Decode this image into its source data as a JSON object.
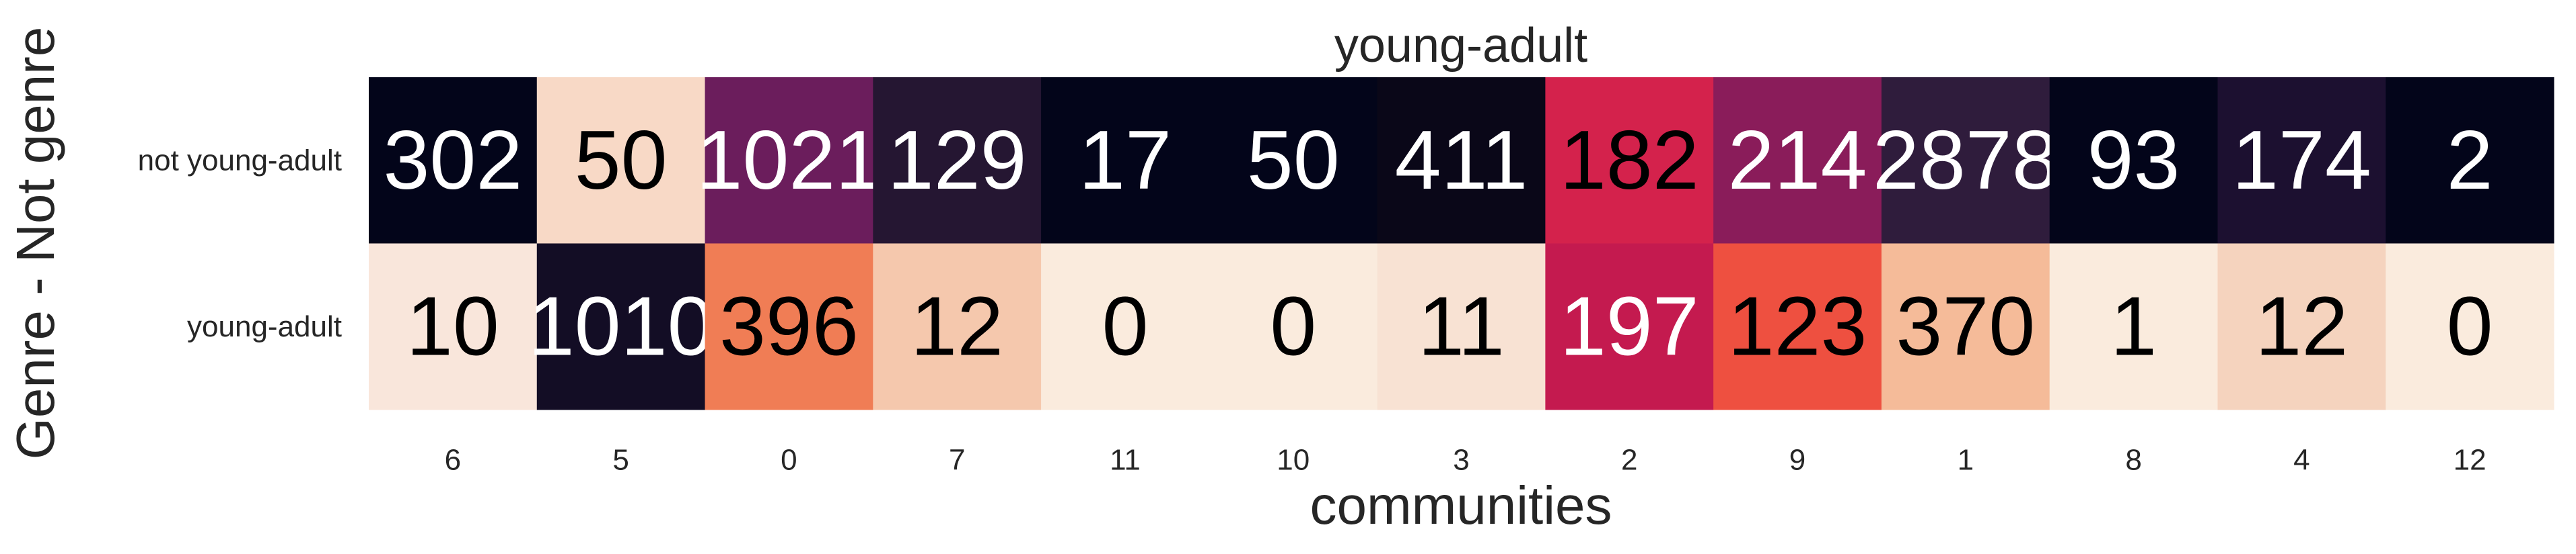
{
  "chart_data": {
    "type": "heatmap",
    "title": "young-adult",
    "xlabel": "communities",
    "ylabel": "Genre - Not genre",
    "x_categories": [
      "6",
      "5",
      "0",
      "7",
      "11",
      "10",
      "3",
      "2",
      "9",
      "1",
      "8",
      "4",
      "12"
    ],
    "y_categories": [
      "not young-adult",
      "young-adult"
    ],
    "values": [
      [
        302,
        50,
        1021,
        129,
        17,
        50,
        411,
        182,
        214,
        2878,
        93,
        174,
        2
      ],
      [
        10,
        1010,
        396,
        12,
        0,
        0,
        11,
        197,
        123,
        370,
        1,
        12,
        0
      ]
    ],
    "cell_colors": [
      [
        "#03051a",
        "#f8d9c6",
        "#6b1d5c",
        "#251632",
        "#03051a",
        "#03051a",
        "#0a0718",
        "#d4224c",
        "#8a1c5a",
        "#2f1c3c",
        "#03051a",
        "#1c1030",
        "#03051a"
      ],
      [
        "#f9e6db",
        "#130d25",
        "#f07d55",
        "#f5c8ad",
        "#faebdd",
        "#faebdd",
        "#f8e2d3",
        "#c41a4f",
        "#ee5040",
        "#f5bb99",
        "#faebdd",
        "#f5d3be",
        "#faebdd"
      ]
    ],
    "label_colors": [
      [
        "#ffffff",
        "#000000",
        "#ffffff",
        "#ffffff",
        "#ffffff",
        "#ffffff",
        "#ffffff",
        "#000000",
        "#ffffff",
        "#ffffff",
        "#ffffff",
        "#ffffff",
        "#ffffff"
      ],
      [
        "#000000",
        "#ffffff",
        "#000000",
        "#000000",
        "#000000",
        "#000000",
        "#000000",
        "#ffffff",
        "#000000",
        "#000000",
        "#000000",
        "#000000",
        "#000000"
      ]
    ],
    "colorbar": false,
    "grid": false
  }
}
